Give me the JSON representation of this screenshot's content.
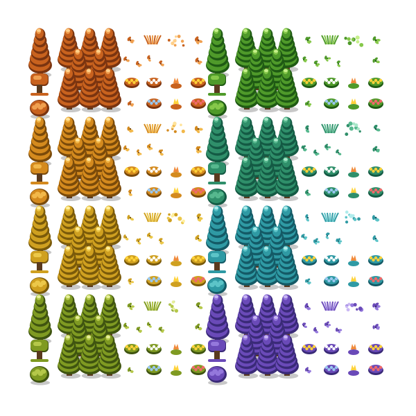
{
  "sheet": {
    "title": "",
    "palettes": [
      {
        "name": "autumn-orange",
        "dark": "#7a3410",
        "base": "#c8621e",
        "light": "#f0a050",
        "hi": "#ffd08a"
      },
      {
        "name": "amber",
        "dark": "#7a4a0a",
        "base": "#d48a1e",
        "light": "#f2b84a",
        "hi": "#ffe39a"
      },
      {
        "name": "golden",
        "dark": "#7a5a0a",
        "base": "#cfa020",
        "light": "#ecc84a",
        "hi": "#fff0a0"
      },
      {
        "name": "olive",
        "dark": "#3f5410",
        "base": "#7f9a22",
        "light": "#b5c84a",
        "hi": "#e6ef9a"
      },
      {
        "name": "green",
        "dark": "#1f5a14",
        "base": "#4f9a2a",
        "light": "#86c84a",
        "hi": "#c6f08a"
      },
      {
        "name": "teal",
        "dark": "#145a44",
        "base": "#2f8f6a",
        "light": "#56b88e",
        "hi": "#a8e6c8"
      },
      {
        "name": "cyan",
        "dark": "#145a66",
        "base": "#2f9aa4",
        "light": "#5cc4c8",
        "hi": "#b0ecec"
      },
      {
        "name": "violet",
        "dark": "#3a2a78",
        "base": "#6a4ab8",
        "light": "#9478dc",
        "hi": "#cab8f4"
      }
    ],
    "flower_colors": [
      "#ffd23a",
      "#f08a3a",
      "#f06a6a",
      "#9ac8f0",
      "#ffffff"
    ],
    "trunk_color": "#5a3a1e",
    "shadow_color": "#9a9a9a"
  }
}
